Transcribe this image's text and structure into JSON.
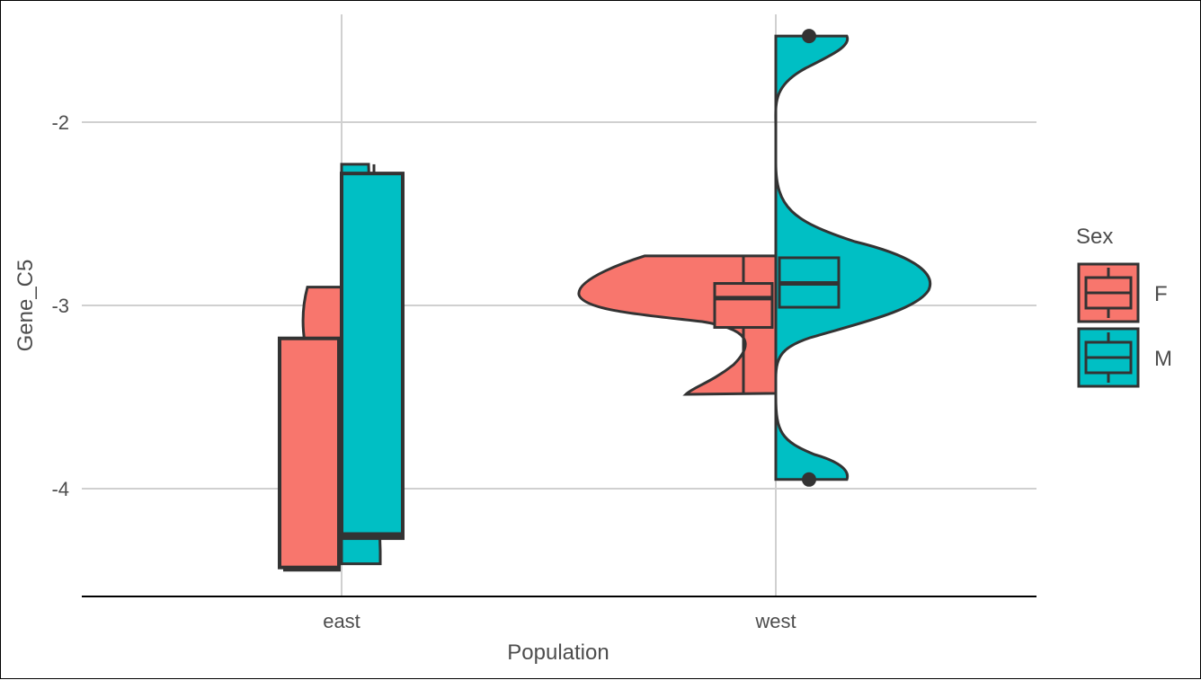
{
  "chart_data": {
    "type": "violin",
    "x_axis": {
      "label": "Population",
      "categories": [
        "east",
        "west"
      ]
    },
    "y_axis": {
      "label": "Gene_C5",
      "ticks": [
        -2,
        -3,
        -4
      ],
      "range": [
        -4.6,
        -1.45
      ]
    },
    "grid": true,
    "legend": {
      "title": "Sex",
      "position": "right",
      "entries": [
        {
          "label": "F",
          "color": "#F8766D"
        },
        {
          "label": "M",
          "color": "#00BFC4"
        }
      ]
    },
    "groups": [
      {
        "population": "east",
        "sex": "F",
        "color": "#F8766D",
        "box": {
          "min": -4.45,
          "q1": -4.43,
          "median": -4.43,
          "q3": -3.18,
          "max": -2.9
        },
        "violin_range": [
          -4.45,
          -2.9
        ]
      },
      {
        "population": "east",
        "sex": "M",
        "color": "#00BFC4",
        "box": {
          "min": -4.41,
          "q1": -4.27,
          "median": -4.25,
          "q3": -2.28,
          "max": -2.23
        },
        "violin_range": [
          -4.41,
          -2.23
        ]
      },
      {
        "population": "west",
        "sex": "F",
        "color": "#F8766D",
        "box": {
          "min": -3.48,
          "q1": -3.12,
          "median": -2.96,
          "q3": -2.88,
          "max": -2.73
        },
        "violin_range": [
          -3.48,
          -2.73
        ],
        "outliers": []
      },
      {
        "population": "west",
        "sex": "M",
        "color": "#00BFC4",
        "box": {
          "min": -3.38,
          "q1": -3.01,
          "median": -2.88,
          "q3": -2.74,
          "max": -2.55
        },
        "violin_range": [
          -3.95,
          -1.53
        ],
        "outliers": [
          -1.53,
          -3.95
        ]
      }
    ]
  }
}
